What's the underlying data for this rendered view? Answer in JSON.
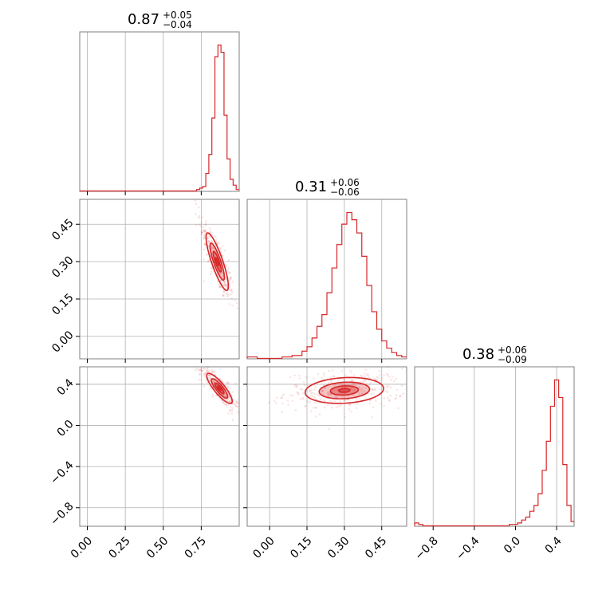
{
  "chart_data": {
    "type": "corner",
    "color": "#d62728",
    "grid": true,
    "parameters": [
      {
        "range": [
          -0.05,
          1.0
        ],
        "ticks": [
          0.0,
          0.25,
          0.5,
          0.75
        ],
        "tick_labels": [
          "0.00",
          "0.25",
          "0.50",
          "0.75"
        ],
        "title": {
          "value": "0.87",
          "plus": "+0.05",
          "minus": "−0.04"
        },
        "histogram": {
          "bins": [
            0.7,
            0.72,
            0.74,
            0.76,
            0.78,
            0.8,
            0.82,
            0.84,
            0.86,
            0.88,
            0.9,
            0.92,
            0.94,
            0.96,
            0.98,
            1.0
          ],
          "values": [
            0.0,
            0.01,
            0.02,
            0.03,
            0.12,
            0.25,
            0.5,
            0.92,
            1.0,
            0.95,
            0.52,
            0.22,
            0.08,
            0.04,
            0.01
          ]
        }
      },
      {
        "range": [
          -0.09,
          0.55
        ],
        "ticks": [
          0.0,
          0.15,
          0.3,
          0.45
        ],
        "tick_labels": [
          "0.00",
          "0.15",
          "0.30",
          "0.45"
        ],
        "title": {
          "value": "0.31",
          "plus": "+0.06",
          "minus": "−0.06"
        },
        "histogram": {
          "bins": [
            -0.09,
            -0.07,
            -0.05,
            -0.03,
            -0.01,
            0.01,
            0.03,
            0.05,
            0.07,
            0.09,
            0.11,
            0.13,
            0.15,
            0.17,
            0.19,
            0.21,
            0.23,
            0.25,
            0.27,
            0.29,
            0.31,
            0.33,
            0.35,
            0.37,
            0.39,
            0.41,
            0.43,
            0.45,
            0.47,
            0.49,
            0.51,
            0.53,
            0.55
          ],
          "values": [
            0.01,
            0.01,
            0.0,
            0.0,
            0.0,
            0.0,
            0.0,
            0.01,
            0.01,
            0.02,
            0.02,
            0.05,
            0.08,
            0.14,
            0.22,
            0.3,
            0.45,
            0.62,
            0.78,
            0.92,
            1.0,
            0.95,
            0.86,
            0.7,
            0.5,
            0.32,
            0.2,
            0.12,
            0.07,
            0.04,
            0.02,
            0.01
          ]
        }
      },
      {
        "range": [
          -0.98,
          0.57
        ],
        "ticks": [
          -0.8,
          -0.4,
          0.0,
          0.4
        ],
        "tick_labels": [
          "−0.8",
          "−0.4",
          "0.0",
          "0.4"
        ],
        "title": {
          "value": "0.38",
          "plus": "+0.06",
          "minus": "−0.09"
        },
        "histogram": {
          "bins": [
            -0.98,
            -0.94,
            -0.9,
            -0.86,
            -0.82,
            -0.78,
            -0.74,
            -0.7,
            -0.66,
            -0.62,
            -0.58,
            -0.54,
            -0.5,
            -0.46,
            -0.42,
            -0.38,
            -0.34,
            -0.3,
            -0.26,
            -0.22,
            -0.18,
            -0.14,
            -0.1,
            -0.06,
            -0.02,
            0.02,
            0.06,
            0.1,
            0.14,
            0.18,
            0.22,
            0.26,
            0.3,
            0.34,
            0.38,
            0.42,
            0.46,
            0.5,
            0.54,
            0.57
          ],
          "values": [
            0.02,
            0.01,
            0.0,
            0.0,
            0.0,
            0.0,
            0.0,
            0.0,
            0.0,
            0.0,
            0.0,
            0.0,
            0.0,
            0.0,
            0.0,
            0.0,
            0.0,
            0.0,
            0.0,
            0.0,
            0.0,
            0.0,
            0.0,
            0.01,
            0.01,
            0.02,
            0.04,
            0.06,
            0.1,
            0.14,
            0.22,
            0.38,
            0.58,
            0.82,
            1.0,
            0.88,
            0.42,
            0.14,
            0.03
          ]
        }
      }
    ],
    "pairs": [
      {
        "x_param": 0,
        "y_param": 1,
        "center": [
          0.855,
          0.3
        ],
        "sigma": [
          0.035,
          0.055
        ],
        "rho": -0.85,
        "contour_levels": [
          0.3,
          0.75,
          1.35,
          2.1
        ],
        "filled_levels": [
          0.3,
          0.75,
          1.35
        ]
      },
      {
        "x_param": 1,
        "y_param": 2,
        "center": [
          0.3,
          0.34
        ],
        "sigma": [
          0.075,
          0.06
        ],
        "rho": 0.15,
        "contour_levels": [
          0.3,
          0.75,
          1.35,
          2.1
        ],
        "filled_levels": [
          0.3,
          0.75,
          1.35
        ]
      },
      {
        "x_param": 0,
        "y_param": 2,
        "center": [
          0.87,
          0.36
        ],
        "sigma": [
          0.04,
          0.07
        ],
        "rho": -0.85,
        "contour_levels": [
          0.3,
          0.75,
          1.35,
          2.1
        ],
        "filled_levels": [
          0.3,
          0.75,
          1.35
        ]
      }
    ]
  }
}
